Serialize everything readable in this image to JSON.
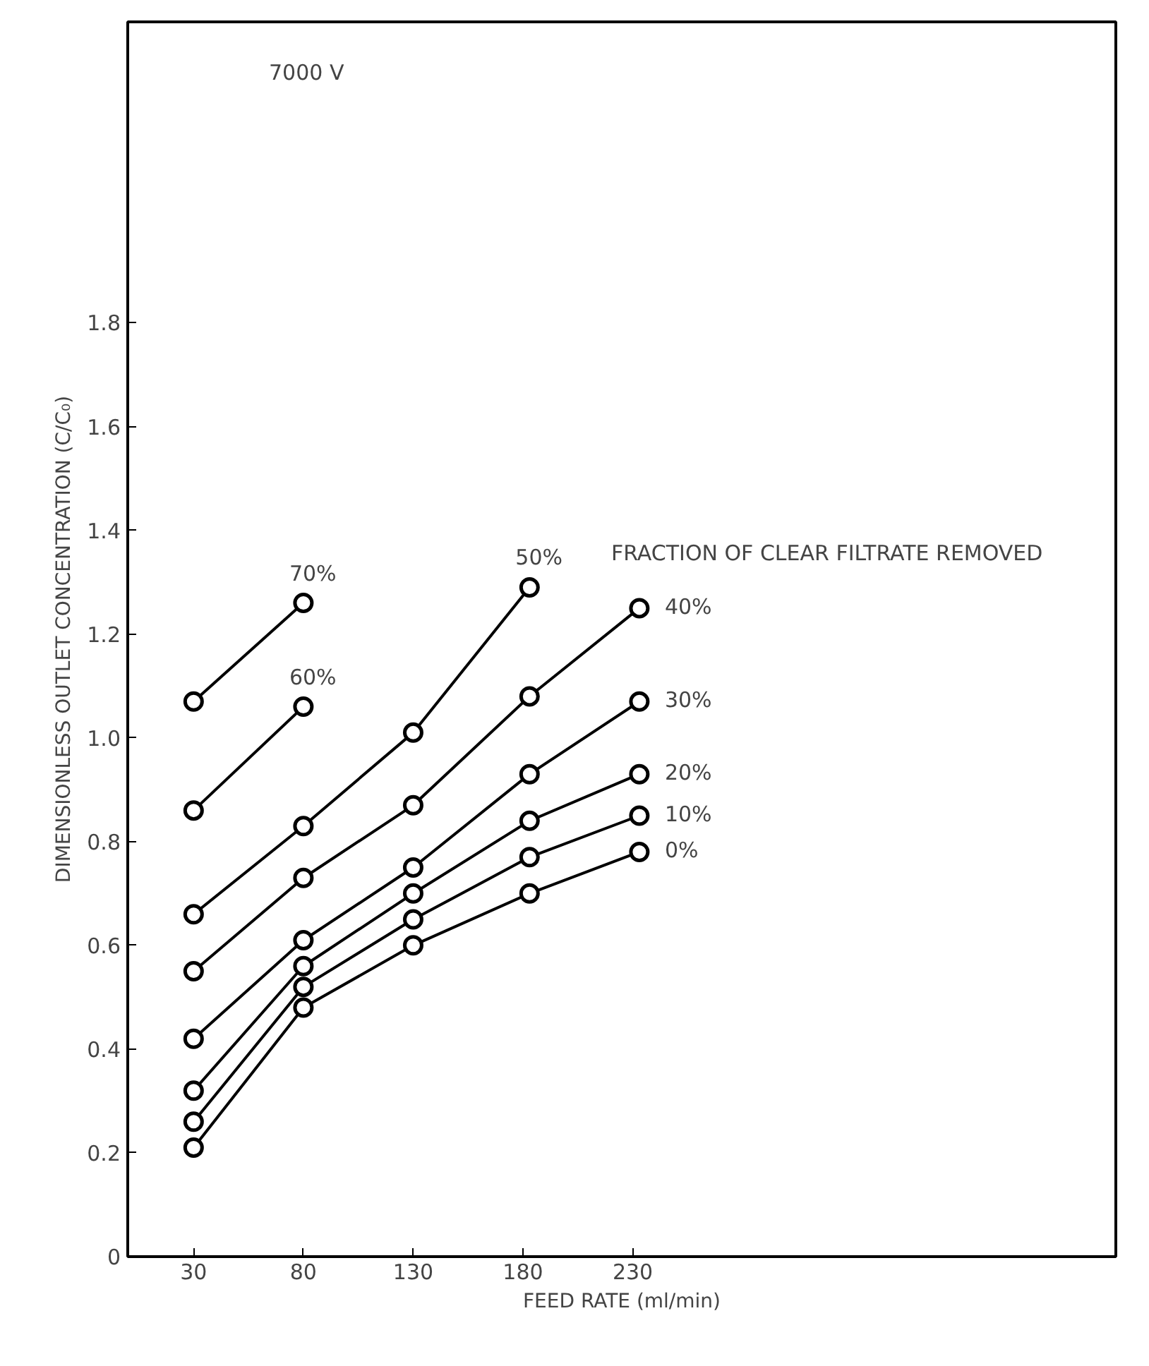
{
  "chart_data": {
    "type": "line",
    "xlabel": "FEED RATE (ml/min)",
    "ylabel": "DIMENSIONLESS OUTLET CONCENTRATION (C/C₀)",
    "legend_title": "FRACTION OF CLEAR FILTRATE REMOVED",
    "annotations": [
      "7000 V"
    ],
    "xlim": [
      0,
      450
    ],
    "xticks": [
      30,
      80,
      130,
      180,
      230
    ],
    "ylim": [
      0,
      2.38
    ],
    "yticks": [
      0,
      0.2,
      0.4,
      0.6,
      0.8,
      {
        "value": 1,
        "label": "1.0"
      },
      1.2,
      1.4,
      1.6,
      1.8
    ],
    "marker": "circle",
    "grid": false,
    "series": [
      {
        "name": "70%",
        "color": "#000000",
        "x": [
          30,
          80
        ],
        "values": [
          1.07,
          1.26
        ]
      },
      {
        "name": "60%",
        "color": "#000000",
        "x": [
          30,
          80
        ],
        "values": [
          0.86,
          1.06
        ]
      },
      {
        "name": "50%",
        "color": "#000000",
        "x": [
          30,
          80,
          130,
          183
        ],
        "values": [
          0.66,
          0.83,
          1.01,
          1.29
        ]
      },
      {
        "name": "40%",
        "color": "#000000",
        "x": [
          30,
          80,
          130,
          183,
          233
        ],
        "values": [
          0.55,
          0.73,
          0.87,
          1.08,
          1.25
        ]
      },
      {
        "name": "30%",
        "color": "#000000",
        "x": [
          30,
          80,
          130,
          183,
          233
        ],
        "values": [
          0.42,
          0.61,
          0.75,
          0.93,
          1.07
        ]
      },
      {
        "name": "20%",
        "color": "#000000",
        "x": [
          30,
          80,
          130,
          183,
          233
        ],
        "values": [
          0.32,
          0.56,
          0.7,
          0.84,
          0.93
        ]
      },
      {
        "name": "10%",
        "color": "#000000",
        "x": [
          30,
          80,
          130,
          183,
          233
        ],
        "values": [
          0.26,
          0.52,
          0.65,
          0.77,
          0.85
        ]
      },
      {
        "name": "0%",
        "color": "#000000",
        "x": [
          30,
          80,
          130,
          183,
          233
        ],
        "values": [
          0.21,
          0.48,
          0.6,
          0.7,
          0.78
        ]
      }
    ]
  }
}
